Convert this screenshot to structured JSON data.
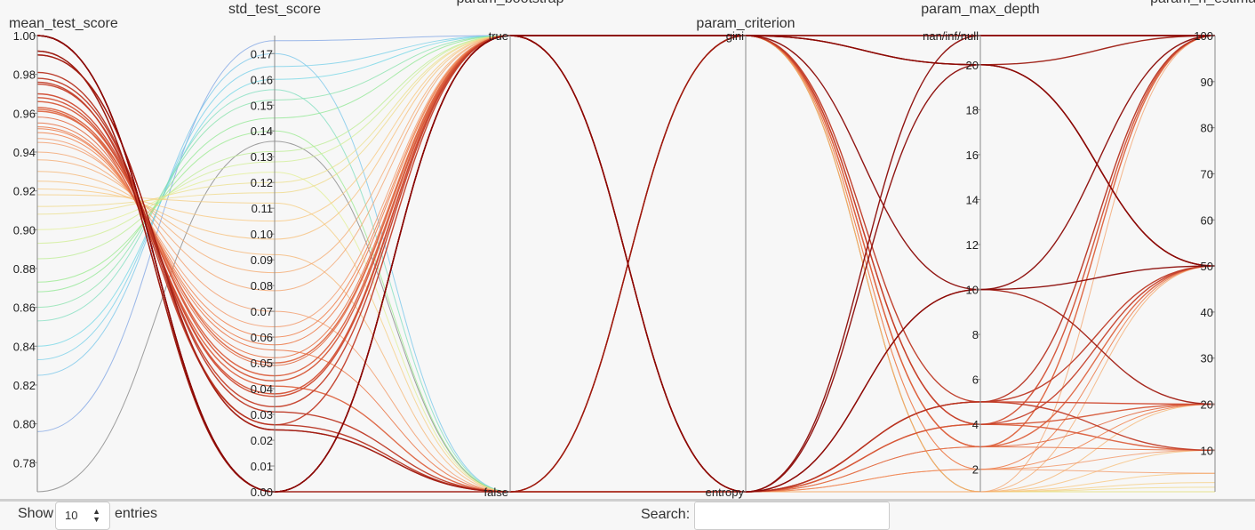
{
  "chart_data": {
    "type": "parallel_coordinates",
    "axes": [
      {
        "name": "mean_test_score",
        "kind": "numeric",
        "range": [
          0.765,
          1.0
        ],
        "ticks": [
          "0.78",
          "0.80",
          "0.82",
          "0.84",
          "0.86",
          "0.88",
          "0.90",
          "0.92",
          "0.94",
          "0.96",
          "0.98",
          "1.00"
        ],
        "tick_values": [
          0.78,
          0.8,
          0.82,
          0.84,
          0.86,
          0.88,
          0.9,
          0.92,
          0.94,
          0.96,
          0.98,
          1.0
        ]
      },
      {
        "name": "std_test_score",
        "kind": "numeric",
        "range": [
          0,
          0.177
        ],
        "ticks": [
          "0.00",
          "0.01",
          "0.02",
          "0.03",
          "0.04",
          "0.05",
          "0.06",
          "0.07",
          "0.08",
          "0.09",
          "0.10",
          "0.11",
          "0.12",
          "0.13",
          "0.14",
          "0.15",
          "0.16",
          "0.17"
        ],
        "tick_values": [
          0,
          0.01,
          0.02,
          0.03,
          0.04,
          0.05,
          0.06,
          0.07,
          0.08,
          0.09,
          0.1,
          0.11,
          0.12,
          0.13,
          0.14,
          0.15,
          0.16,
          0.17
        ]
      },
      {
        "name": "param_bootstrap",
        "kind": "categorical",
        "categories": [
          "false",
          "true"
        ],
        "ticks": [
          "false",
          "true"
        ],
        "title_partially_visible": true
      },
      {
        "name": "param_criterion",
        "kind": "categorical",
        "categories": [
          "entropy",
          "gini"
        ],
        "ticks": [
          "entropy",
          "gini"
        ]
      },
      {
        "name": "param_max_depth",
        "kind": "numeric_with_null",
        "range": [
          1,
          21.3
        ],
        "ticks": [
          "2",
          "4",
          "6",
          "8",
          "10",
          "12",
          "14",
          "16",
          "18",
          "20",
          "nan/inf/null"
        ],
        "tick_values": [
          2,
          4,
          6,
          8,
          10,
          12,
          14,
          16,
          18,
          20,
          "null"
        ]
      },
      {
        "name": "param_n_estimators",
        "kind": "numeric",
        "range": [
          1,
          100
        ],
        "ticks": [
          "10",
          "20",
          "30",
          "40",
          "50",
          "60",
          "70",
          "80",
          "90",
          "100"
        ],
        "tick_values": [
          10,
          20,
          30,
          40,
          50,
          60,
          70,
          80,
          90,
          100
        ],
        "title_partially_visible": true
      }
    ],
    "color_scale": {
      "by": "mean_test_score",
      "stops": [
        {
          "value": 0.765,
          "color": "#808080"
        },
        {
          "value": 0.8,
          "color": "#7aa6f0"
        },
        {
          "value": 0.84,
          "color": "#6fd6e6"
        },
        {
          "value": 0.87,
          "color": "#8fe88a"
        },
        {
          "value": 0.9,
          "color": "#e2ef93"
        },
        {
          "value": 0.92,
          "color": "#f8c87a"
        },
        {
          "value": 0.95,
          "color": "#f08a5a"
        },
        {
          "value": 0.97,
          "color": "#d04a30"
        },
        {
          "value": 1.0,
          "color": "#8b0a06"
        }
      ]
    },
    "rows": [
      [
        1.0,
        0.0,
        "true",
        "gini",
        "null",
        100
      ],
      [
        1.0,
        0.0,
        "true",
        "gini",
        20,
        50
      ],
      [
        1.0,
        0.0,
        "true",
        "entropy",
        "null",
        100
      ],
      [
        1.0,
        0.0,
        "true",
        "entropy",
        20,
        50
      ],
      [
        1.0,
        0.0,
        "true",
        "gini",
        10,
        100
      ],
      [
        1.0,
        0.0,
        "true",
        "entropy",
        10,
        50
      ],
      [
        0.992,
        0.0,
        "true",
        "gini",
        20,
        100
      ],
      [
        0.992,
        0.0,
        "false",
        "gini",
        "null",
        100
      ],
      [
        0.99,
        0.024,
        "false",
        "entropy",
        10,
        20
      ],
      [
        0.99,
        0.024,
        "false",
        "gini",
        20,
        50
      ],
      [
        0.981,
        0.026,
        "false",
        "entropy",
        5,
        100
      ],
      [
        0.978,
        0.031,
        "false",
        "gini",
        5,
        50
      ],
      [
        0.976,
        0.026,
        "true",
        "entropy",
        5,
        10
      ],
      [
        0.975,
        0.033,
        "true",
        "gini",
        4,
        50
      ],
      [
        0.97,
        0.037,
        "true",
        "entropy",
        5,
        20
      ],
      [
        0.968,
        0.038,
        "true",
        "gini",
        4,
        100
      ],
      [
        0.966,
        0.043,
        "true",
        "entropy",
        4,
        20
      ],
      [
        0.963,
        0.045,
        "true",
        "entropy",
        4,
        10
      ],
      [
        0.962,
        0.041,
        "false",
        "gini",
        3,
        50
      ],
      [
        0.961,
        0.05,
        "true",
        "gini",
        3,
        100
      ],
      [
        0.958,
        0.049,
        "true",
        "entropy",
        3,
        20
      ],
      [
        0.955,
        0.052,
        "true",
        "gini",
        3,
        10
      ],
      [
        0.953,
        0.055,
        "false",
        "entropy",
        3,
        100
      ],
      [
        0.952,
        0.057,
        "true",
        "gini",
        2,
        50
      ],
      [
        0.95,
        0.06,
        "true",
        "entropy",
        2,
        20
      ],
      [
        0.947,
        0.064,
        "true",
        "gini",
        2,
        10
      ],
      [
        0.945,
        0.07,
        "false",
        "entropy",
        2,
        5
      ],
      [
        0.94,
        0.078,
        "true",
        "gini",
        1,
        100
      ],
      [
        0.936,
        0.085,
        "true",
        "entropy",
        1,
        50
      ],
      [
        0.93,
        0.092,
        "false",
        "gini",
        1,
        20
      ],
      [
        0.925,
        0.098,
        "true",
        "entropy",
        1,
        10
      ],
      [
        0.921,
        0.105,
        "true",
        "gini",
        1,
        5
      ],
      [
        0.918,
        0.112,
        "false",
        "entropy",
        1,
        3
      ],
      [
        0.912,
        0.116,
        "true",
        "gini",
        1,
        2
      ],
      [
        0.908,
        0.12,
        "true",
        "entropy",
        1,
        1
      ],
      [
        0.9,
        0.124,
        "false",
        "gini",
        1,
        1
      ],
      [
        0.893,
        0.128,
        "true",
        "entropy",
        1,
        1
      ],
      [
        0.885,
        0.132,
        "true",
        "gini",
        1,
        1
      ],
      [
        0.873,
        0.14,
        "false",
        "entropy",
        1,
        1
      ],
      [
        0.868,
        0.145,
        "true",
        "gini",
        1,
        1
      ],
      [
        0.86,
        0.152,
        "true",
        "entropy",
        1,
        1
      ],
      [
        0.853,
        0.156,
        "false",
        "gini",
        1,
        1
      ],
      [
        0.84,
        0.16,
        "true",
        "entropy",
        1,
        1
      ],
      [
        0.833,
        0.165,
        "true",
        "gini",
        1,
        1
      ],
      [
        0.825,
        0.17,
        "false",
        "entropy",
        1,
        1
      ],
      [
        0.796,
        0.175,
        "true",
        "gini",
        1,
        1
      ],
      [
        0.765,
        0.136,
        "false",
        "entropy",
        1,
        1
      ]
    ],
    "title": "",
    "legend": "none",
    "grid": false
  },
  "controls": {
    "show_label": "Show",
    "entries_value": "10",
    "entries_label": "entries",
    "search_label": "Search:",
    "search_value": "",
    "search_placeholder": ""
  }
}
